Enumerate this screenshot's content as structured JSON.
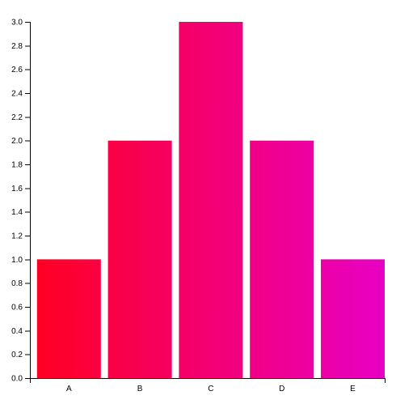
{
  "chart_data": {
    "type": "bar",
    "categories": [
      "A",
      "B",
      "C",
      "D",
      "E"
    ],
    "values": [
      1,
      2,
      3,
      2,
      1
    ],
    "gradient_colors": [
      "#ff0020",
      "#e800c4"
    ],
    "ylim": [
      0,
      3
    ],
    "yticks": [
      {
        "value": 0,
        "label": "0.0"
      },
      0.2,
      0.4,
      0.6,
      0.8,
      {
        "value": 1,
        "label": "1.0"
      },
      1.2,
      1.4,
      1.6,
      1.8,
      {
        "value": 2,
        "label": "2.0"
      },
      2.2,
      2.4,
      2.6,
      2.8,
      {
        "value": 3,
        "label": "3.0"
      }
    ]
  }
}
